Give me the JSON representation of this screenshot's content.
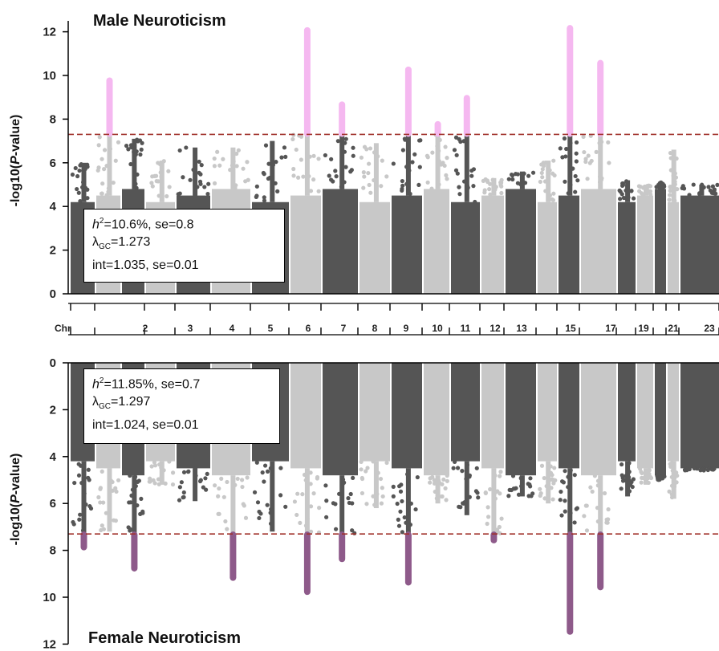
{
  "chart_data": [
    {
      "type": "scatter",
      "subtype": "manhattan",
      "title": "Male Neuroticism",
      "ylabel_prefix": "-log10(",
      "ylabel_italic": "P",
      "ylabel_suffix": "-value)",
      "ylim": [
        0,
        12.5
      ],
      "y_ticks": [
        0,
        2,
        4,
        6,
        8,
        10,
        12
      ],
      "orientation": "up",
      "significance_line": 7.3,
      "stats": {
        "h2_var": "h",
        "h2_rest": "=10.6%, se=0.8",
        "lambda_sym": "λ",
        "lambda_sub": "GC",
        "lambda_rest": "=1.273",
        "int_text": "int=1.035, se=0.01"
      },
      "chromosomes": [
        {
          "chr": 1,
          "max": 6.0
        },
        {
          "chr": 2,
          "max": 9.8,
          "peak": 9.8
        },
        {
          "chr": 3,
          "max": 7.1
        },
        {
          "chr": 4,
          "max": 6.1
        },
        {
          "chr": 5,
          "max": 6.7
        },
        {
          "chr": 6,
          "max": 6.7
        },
        {
          "chr": 7,
          "max": 7.0
        },
        {
          "chr": 8,
          "max": 12.1,
          "peak": 12.1
        },
        {
          "chr": 9,
          "max": 8.7,
          "peak": 8.7
        },
        {
          "chr": 10,
          "max": 6.9
        },
        {
          "chr": 11,
          "max": 10.3,
          "peak": 10.3
        },
        {
          "chr": 12,
          "max": 7.8,
          "peak": 7.8
        },
        {
          "chr": 13,
          "max": 9.0,
          "peak": 9.0
        },
        {
          "chr": 14,
          "max": 5.3
        },
        {
          "chr": 15,
          "max": 5.6
        },
        {
          "chr": 16,
          "max": 6.1
        },
        {
          "chr": 17,
          "max": 12.2,
          "peak": 12.2
        },
        {
          "chr": 18,
          "max": 10.6,
          "peak": 10.6
        },
        {
          "chr": 19,
          "max": 5.2
        },
        {
          "chr": 20,
          "max": 5.0
        },
        {
          "chr": 21,
          "max": 5.1
        },
        {
          "chr": 22,
          "max": 6.6
        },
        {
          "chr": 23,
          "max": 5.0
        }
      ]
    },
    {
      "type": "scatter",
      "subtype": "manhattan",
      "title": "Female Neuroticism",
      "ylabel_prefix": "-log10(",
      "ylabel_italic": "P",
      "ylabel_suffix": "-value)",
      "ylim": [
        0,
        12
      ],
      "y_ticks": [
        0,
        2,
        4,
        6,
        8,
        10,
        12
      ],
      "orientation": "down",
      "significance_line": 7.3,
      "stats": {
        "h2_var": "h",
        "h2_rest": "=11.85%, se=0.7",
        "lambda_sym": "λ",
        "lambda_sub": "GC",
        "lambda_rest": "=1.297",
        "int_text": "int=1.024, se=0.01"
      },
      "chromosomes": [
        {
          "chr": 1,
          "max": 7.9,
          "peak": 7.9
        },
        {
          "chr": 2,
          "max": 7.2
        },
        {
          "chr": 3,
          "max": 8.8,
          "peak": 8.8
        },
        {
          "chr": 4,
          "max": 5.2
        },
        {
          "chr": 5,
          "max": 5.9
        },
        {
          "chr": 6,
          "max": 9.2,
          "peak": 9.2
        },
        {
          "chr": 7,
          "max": 7.2
        },
        {
          "chr": 8,
          "max": 9.8,
          "peak": 9.8
        },
        {
          "chr": 9,
          "max": 8.4,
          "peak": 8.4
        },
        {
          "chr": 10,
          "max": 6.2
        },
        {
          "chr": 11,
          "max": 9.4,
          "peak": 9.4
        },
        {
          "chr": 12,
          "max": 6.0
        },
        {
          "chr": 13,
          "max": 6.5
        },
        {
          "chr": 14,
          "max": 7.6,
          "peak": 7.6
        },
        {
          "chr": 15,
          "max": 5.7
        },
        {
          "chr": 16,
          "max": 6.0
        },
        {
          "chr": 17,
          "max": 11.5,
          "peak": 11.5
        },
        {
          "chr": 18,
          "max": 9.6,
          "peak": 9.6
        },
        {
          "chr": 19,
          "max": 5.7
        },
        {
          "chr": 20,
          "max": 5.2
        },
        {
          "chr": 21,
          "max": 5.0
        },
        {
          "chr": 22,
          "max": 5.8
        },
        {
          "chr": 23,
          "max": 4.6
        }
      ]
    }
  ],
  "chromosome_axis": {
    "label": "Chr",
    "labels": [
      "2",
      "3",
      "4",
      "5",
      "6",
      "7",
      "8",
      "9",
      "10",
      "11",
      "12",
      "13",
      "15",
      "17",
      "19",
      "21",
      "23"
    ]
  },
  "colors": {
    "dark": "#555555",
    "light": "#c8c8c8",
    "male_highlight": "#f5b8f0",
    "female_highlight": "#8e5a8a",
    "threshold": "#a0302a"
  }
}
